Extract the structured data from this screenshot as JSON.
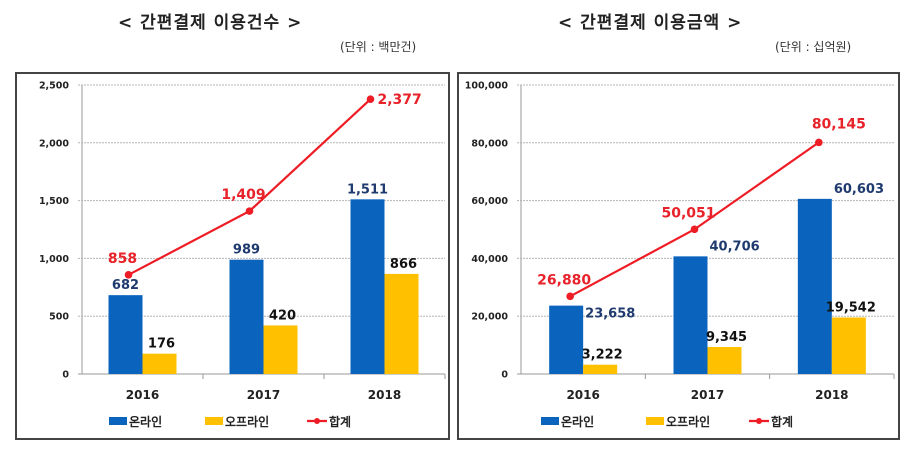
{
  "colors": {
    "online": "#0a64be",
    "offline": "#ffc000",
    "total": "#ee1c25",
    "grid": "#b5b5b5"
  },
  "chart_data": [
    {
      "type": "bar",
      "title": "< 간편결제 이용건수 >",
      "unit": "(단위 : 백만건)",
      "categories": [
        "2016",
        "2017",
        "2018"
      ],
      "ylim": [
        0,
        2500
      ],
      "yticks": [
        0,
        500,
        1000,
        1500,
        2000,
        2500
      ],
      "ytick_labels": [
        "0",
        "500",
        "1,000",
        "1,500",
        "2,000",
        "2,500"
      ],
      "grid": true,
      "legend_position": "bottom",
      "series": [
        {
          "name": "온라인",
          "kind": "bar",
          "values": [
            682,
            989,
            1511
          ],
          "labels": [
            "682",
            "989",
            "1,511"
          ]
        },
        {
          "name": "오프라인",
          "kind": "bar",
          "values": [
            176,
            420,
            866
          ],
          "labels": [
            "176",
            "420",
            "866"
          ]
        },
        {
          "name": "합계",
          "kind": "line",
          "values": [
            858,
            1409,
            2377
          ],
          "labels": [
            "858",
            "1,409",
            "2,377"
          ]
        }
      ]
    },
    {
      "type": "bar",
      "title": "< 간편결제 이용금액 >",
      "unit": "(단위 : 십억원)",
      "categories": [
        "2016",
        "2017",
        "2018"
      ],
      "ylim": [
        0,
        100000
      ],
      "yticks": [
        0,
        20000,
        40000,
        60000,
        80000,
        100000
      ],
      "ytick_labels": [
        "0",
        "20,000",
        "40,000",
        "60,000",
        "80,000",
        "100,000"
      ],
      "grid": true,
      "legend_position": "bottom",
      "series": [
        {
          "name": "온라인",
          "kind": "bar",
          "values": [
            23658,
            40706,
            60603
          ],
          "labels": [
            "23,658",
            "40,706",
            "60,603"
          ]
        },
        {
          "name": "오프라인",
          "kind": "bar",
          "values": [
            3222,
            9345,
            19542
          ],
          "labels": [
            "3,222",
            "9,345",
            "19,542"
          ]
        },
        {
          "name": "합계",
          "kind": "line",
          "values": [
            26880,
            50051,
            80145
          ],
          "labels": [
            "26,880",
            "50,051",
            "80,145"
          ]
        }
      ]
    }
  ]
}
